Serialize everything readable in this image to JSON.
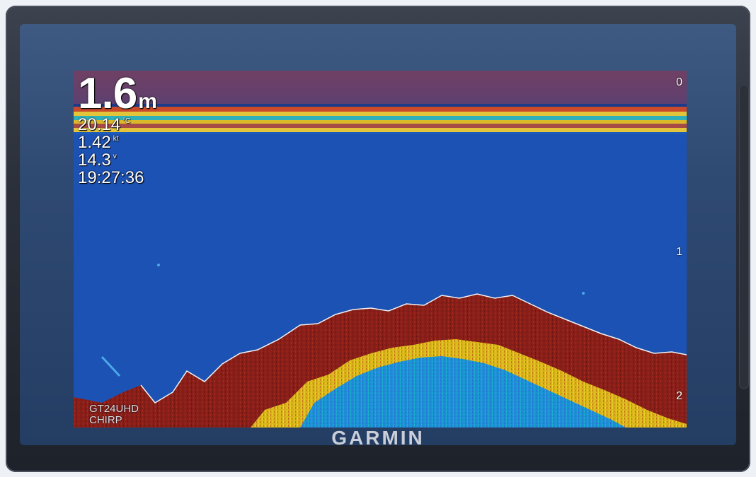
{
  "hud": {
    "depth_value": "1.6",
    "depth_unit": "m",
    "water_temp": "20.14",
    "water_temp_unit": "°C",
    "speed": "1.42",
    "speed_unit": "kt",
    "voltage": "14.3",
    "voltage_unit": "v",
    "time": "19:27:36"
  },
  "depth_scale": {
    "top": "0",
    "middle": "1",
    "bottom": "2"
  },
  "transducer": {
    "model": "GT24UHD",
    "mode": "CHIRP"
  },
  "brand": "GARMIN",
  "colors": {
    "water": "#1c52b4",
    "bottom_strong": "#8a1f1a",
    "bottom_mid": "#d9c21b",
    "bottom_core": "#1e8fd6"
  }
}
